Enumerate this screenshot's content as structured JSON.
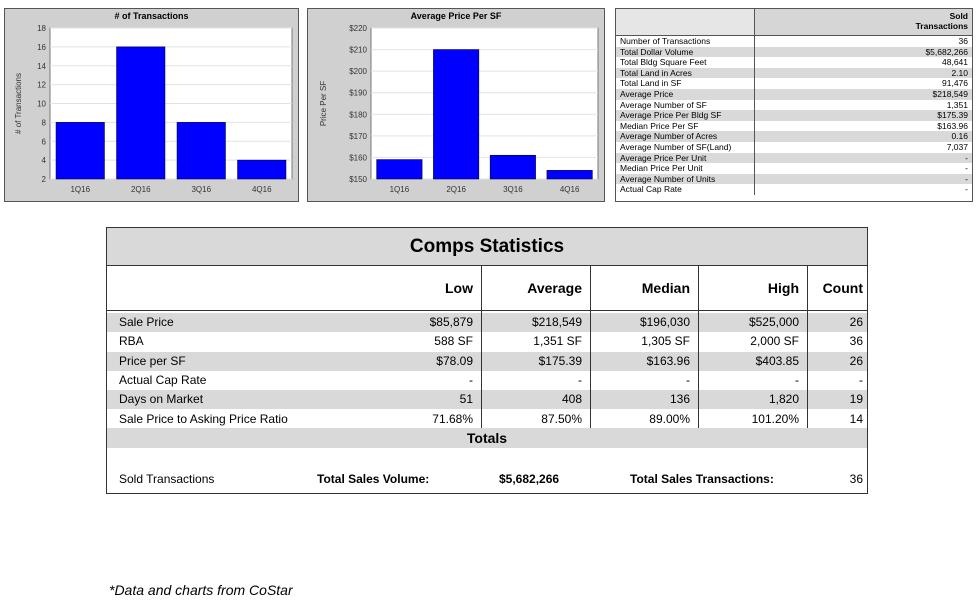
{
  "chart_data": [
    {
      "type": "bar",
      "title": "# of Transactions",
      "ylabel": "# of Transactions",
      "categories": [
        "1Q16",
        "2Q16",
        "3Q16",
        "4Q16"
      ],
      "values": [
        8,
        16,
        8,
        4
      ],
      "ylim": [
        2,
        18
      ],
      "yticks": [
        "2",
        "4",
        "6",
        "8",
        "10",
        "12",
        "14",
        "16",
        "18"
      ],
      "bar_color": "#0000ff"
    },
    {
      "type": "bar",
      "title": "Average Price Per SF",
      "ylabel": "Price Per SF",
      "categories": [
        "1Q16",
        "2Q16",
        "3Q16",
        "4Q16"
      ],
      "values": [
        159,
        210,
        161,
        154
      ],
      "ylim": [
        150,
        220
      ],
      "yticks": [
        "$150",
        "$160",
        "$170",
        "$180",
        "$190",
        "$200",
        "$210",
        "$220"
      ],
      "bar_color": "#0000ff"
    }
  ],
  "sold_table": {
    "header": "Sold\nTransactions",
    "rows": [
      {
        "label": "Number of Transactions",
        "value": "36"
      },
      {
        "label": "Total Dollar Volume",
        "value": "$5,682,266"
      },
      {
        "label": "Total Bldg Square Feet",
        "value": "48,641"
      },
      {
        "label": "Total Land in Acres",
        "value": "2.10"
      },
      {
        "label": "Total Land in SF",
        "value": "91,476"
      },
      {
        "label": "Average Price",
        "value": "$218,549"
      },
      {
        "label": "Average Number of SF",
        "value": "1,351"
      },
      {
        "label": "Average Price Per Bldg SF",
        "value": "$175.39"
      },
      {
        "label": "Median Price Per SF",
        "value": "$163.96"
      },
      {
        "label": "Average Number of Acres",
        "value": "0.16"
      },
      {
        "label": "Average Number of SF(Land)",
        "value": "7,037"
      },
      {
        "label": "Average Price Per Unit",
        "value": "-"
      },
      {
        "label": "Median Price Per Unit",
        "value": "-"
      },
      {
        "label": "Average Number of Units",
        "value": "-"
      },
      {
        "label": "Actual Cap Rate",
        "value": "-"
      }
    ]
  },
  "comps": {
    "title": "Comps Statistics",
    "columns": [
      "Low",
      "Average",
      "Median",
      "High",
      "Count"
    ],
    "rows": [
      {
        "label": "Sale Price",
        "cells": [
          "$85,879",
          "$218,549",
          "$196,030",
          "$525,000",
          "26"
        ]
      },
      {
        "label": "RBA",
        "cells": [
          "588 SF",
          "1,351 SF",
          "1,305 SF",
          "2,000 SF",
          "36"
        ]
      },
      {
        "label": "Price per SF",
        "cells": [
          "$78.09",
          "$175.39",
          "$163.96",
          "$403.85",
          "26"
        ]
      },
      {
        "label": "Actual Cap Rate",
        "cells": [
          "-",
          "-",
          "-",
          "-",
          "-"
        ]
      },
      {
        "label": "Days on Market",
        "cells": [
          "51",
          "408",
          "136",
          "1,820",
          "19"
        ]
      },
      {
        "label": "Sale Price to Asking Price Ratio",
        "cells": [
          "71.68%",
          "87.50%",
          "89.00%",
          "101.20%",
          "14"
        ]
      }
    ],
    "totals": {
      "title": "Totals",
      "row_label": "Sold Transactions",
      "volume_label": "Total Sales Volume:",
      "volume_value": "$5,682,266",
      "transactions_label": "Total Sales Transactions:",
      "transactions_value": "36"
    }
  },
  "footnote": "*Data and charts from CoStar"
}
